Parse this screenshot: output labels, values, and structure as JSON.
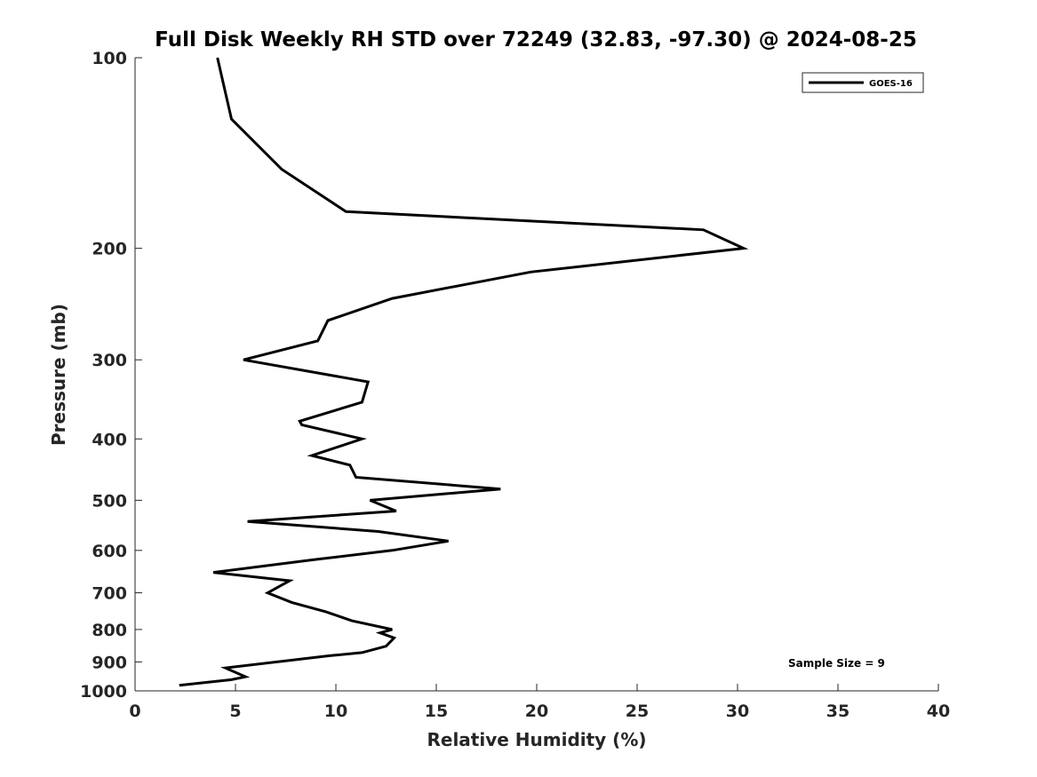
{
  "chart_data": {
    "type": "line",
    "title": "Full Disk Weekly RH STD over 72249 (32.83, -97.30) @ 2024-08-25",
    "xlabel": "Relative Humidity (%)",
    "ylabel": "Pressure (mb)",
    "xlim": [
      0,
      40
    ],
    "ylim": [
      100,
      1000
    ],
    "yscale": "log",
    "y_reversed": true,
    "x_ticks": [
      "0",
      "5",
      "10",
      "15",
      "20",
      "25",
      "30",
      "35",
      "40"
    ],
    "y_ticks": [
      "100",
      "200",
      "300",
      "400",
      "500",
      "600",
      "700",
      "800",
      "900",
      "1000"
    ],
    "grid": false,
    "legend": {
      "position": "top-right",
      "entries": [
        "GOES-16"
      ]
    },
    "annotation": "Sample Size = 9",
    "series": [
      {
        "name": "GOES-16",
        "color": "#000000",
        "points": [
          [
            4.1,
            100
          ],
          [
            4.8,
            125
          ],
          [
            7.3,
            150
          ],
          [
            10.5,
            175
          ],
          [
            28.3,
            187
          ],
          [
            30.3,
            200
          ],
          [
            19.7,
            218
          ],
          [
            12.8,
            240
          ],
          [
            9.6,
            260
          ],
          [
            9.1,
            280
          ],
          [
            5.4,
            300
          ],
          [
            11.6,
            325
          ],
          [
            11.3,
            350
          ],
          [
            8.2,
            375
          ],
          [
            8.3,
            380
          ],
          [
            11.3,
            400
          ],
          [
            8.8,
            425
          ],
          [
            10.7,
            440
          ],
          [
            11.0,
            460
          ],
          [
            18.2,
            480
          ],
          [
            11.7,
            500
          ],
          [
            13.0,
            520
          ],
          [
            5.6,
            540
          ],
          [
            12.1,
            560
          ],
          [
            15.6,
            580
          ],
          [
            12.8,
            600
          ],
          [
            9.0,
            620
          ],
          [
            3.9,
            650
          ],
          [
            7.7,
            670
          ],
          [
            6.6,
            700
          ],
          [
            7.8,
            725
          ],
          [
            9.5,
            750
          ],
          [
            10.8,
            775
          ],
          [
            12.8,
            800
          ],
          [
            12.2,
            810
          ],
          [
            12.9,
            825
          ],
          [
            12.5,
            850
          ],
          [
            11.3,
            870
          ],
          [
            9.7,
            880
          ],
          [
            4.5,
            920
          ],
          [
            5.5,
            950
          ],
          [
            4.8,
            960
          ],
          [
            2.2,
            980
          ]
        ]
      }
    ]
  }
}
